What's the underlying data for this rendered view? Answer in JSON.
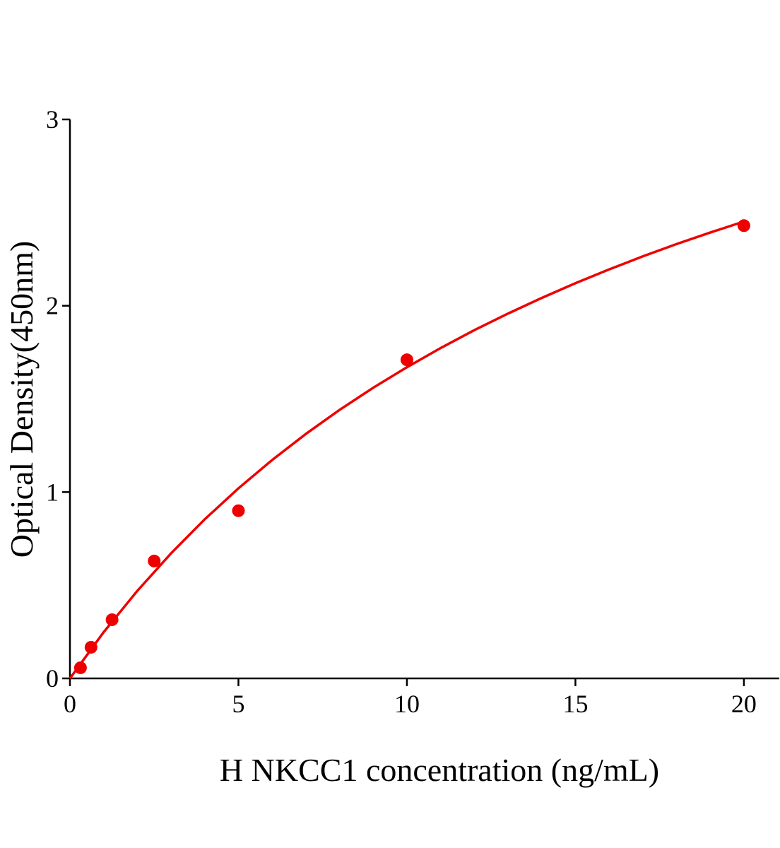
{
  "chart_data": {
    "type": "scatter",
    "x_label": "H NKCC1 concentration (ng/mL)",
    "y_label": "Optical Density(450nm)",
    "xlim": [
      0,
      21.05
    ],
    "ylim": [
      0,
      3
    ],
    "xticks": [
      0,
      5,
      10,
      15,
      20
    ],
    "yticks": [
      0,
      1,
      2,
      3
    ],
    "series": [
      {
        "color": "#ee0000",
        "style": "markers",
        "x": [
          0.3125,
          0.625,
          1.25,
          2.5,
          5,
          10,
          20
        ],
        "values": [
          0.057,
          0.167,
          0.315,
          0.63,
          0.9,
          1.71,
          2.43
        ]
      },
      {
        "color": "#ee0000",
        "style": "line",
        "x": [
          0,
          1,
          2,
          3,
          4,
          5,
          6,
          7,
          8,
          9,
          10,
          11,
          12,
          13,
          14,
          15,
          16,
          17,
          18,
          19,
          20
        ],
        "values": [
          0,
          0.248,
          0.47,
          0.671,
          0.854,
          1.02,
          1.172,
          1.312,
          1.441,
          1.56,
          1.67,
          1.773,
          1.869,
          1.958,
          2.042,
          2.121,
          2.195,
          2.265,
          2.331,
          2.393,
          2.452
        ]
      }
    ]
  }
}
